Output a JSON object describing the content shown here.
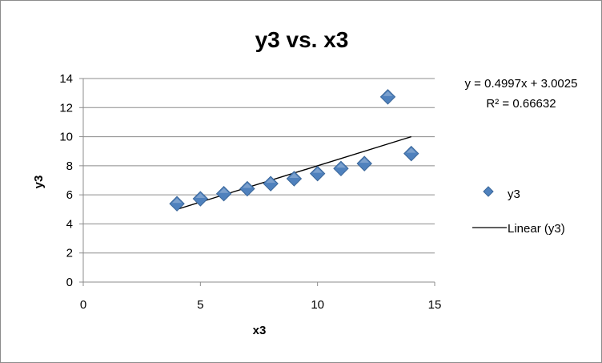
{
  "chart_data": {
    "type": "scatter",
    "title": "y3 vs. x3",
    "xlabel": "x3",
    "ylabel": "y3",
    "xlim": [
      0,
      15
    ],
    "ylim": [
      0,
      14
    ],
    "xticks": [
      "0",
      "5",
      "10",
      "15"
    ],
    "yticks": [
      "0",
      "2",
      "4",
      "6",
      "8",
      "10",
      "12",
      "14"
    ],
    "grid": "horizontal",
    "legend_position": "right",
    "series": [
      {
        "name": "y3",
        "marker": "diamond",
        "color": "#4f81bd",
        "x": [
          4,
          5,
          6,
          7,
          8,
          9,
          10,
          11,
          12,
          13,
          14
        ],
        "y": [
          5.39,
          5.73,
          6.08,
          6.42,
          6.77,
          7.11,
          7.46,
          7.81,
          8.15,
          12.74,
          8.84
        ]
      }
    ],
    "trendline": {
      "name": "Linear (y3)",
      "type": "linear",
      "slope": 0.4997,
      "intercept": 3.0025,
      "x_range": [
        4,
        14
      ],
      "equation": "y = 0.4997x + 3.0025",
      "r_squared": "R² = 0.66632",
      "color": "#000000"
    }
  }
}
